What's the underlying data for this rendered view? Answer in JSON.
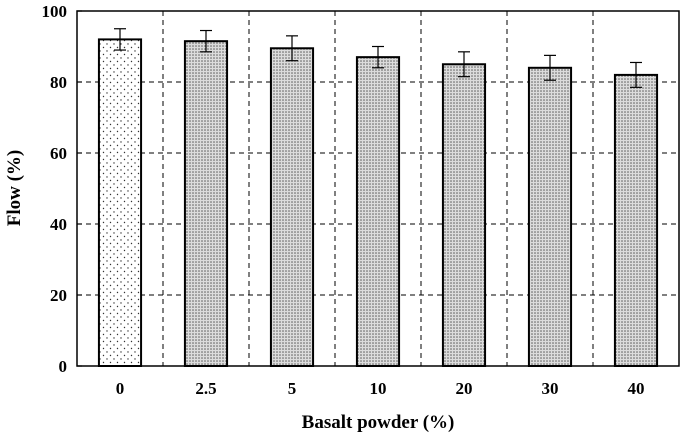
{
  "chart_data": {
    "type": "bar",
    "xlabel": "Basalt powder (%)",
    "ylabel": "Flow  (%)",
    "categories": [
      "0",
      "2.5",
      "5",
      "10",
      "20",
      "30",
      "40"
    ],
    "values": [
      92,
      91.5,
      89.5,
      87,
      85,
      84,
      82
    ],
    "errors": [
      3,
      3,
      3.5,
      3,
      3.5,
      3.5,
      3.5
    ],
    "ylim": [
      0,
      100
    ],
    "yticks": [
      "0",
      "20",
      "40",
      "60",
      "80",
      "100"
    ],
    "grid": true,
    "legend": "none",
    "colors": {
      "bar_fill": "#bdbdbd",
      "first_bar_fill": "#ffffff",
      "stroke": "#000000"
    }
  }
}
